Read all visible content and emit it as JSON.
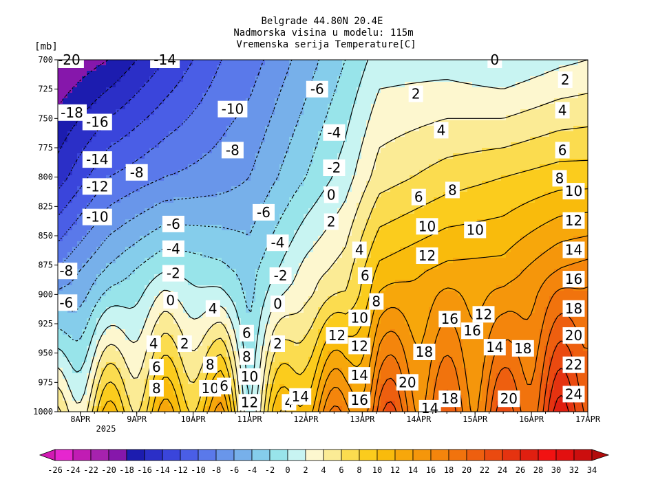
{
  "chart_data": {
    "type": "heatmap",
    "title": [
      "Belgrade  44.80N 20.4E",
      "Nadmorska visina u modelu: 115m",
      "Vremenska serija Temperature[C]"
    ],
    "y_unit_label": "[mb]",
    "y_ticks": [
      700,
      725,
      750,
      775,
      800,
      825,
      850,
      875,
      900,
      925,
      950,
      975,
      1000
    ],
    "ylim": [
      1000,
      700
    ],
    "x_ticks": [
      "8APR",
      "9APR",
      "10APR",
      "11APR",
      "12APR",
      "13APR",
      "14APR",
      "15APR",
      "16APR",
      "17APR"
    ],
    "x_year": "2025",
    "xlim_days": [
      7.6,
      17.0
    ],
    "contour_interval": 2,
    "colorbar_levels": [
      -26,
      -24,
      -22,
      -20,
      -18,
      -16,
      -14,
      -12,
      -10,
      -8,
      -6,
      -4,
      -2,
      0,
      2,
      4,
      6,
      8,
      10,
      12,
      14,
      16,
      18,
      20,
      22,
      24,
      26,
      28,
      30,
      32,
      34
    ],
    "colorbar_colors": [
      "#d31ab4",
      "#e626cf",
      "#c11cb4",
      "#a622ae",
      "#8617ab",
      "#1c1caf",
      "#2b2fc7",
      "#3a45db",
      "#4a5ee6",
      "#5a79ea",
      "#6996ea",
      "#77b0ea",
      "#85cdeb",
      "#98e4ea",
      "#c8f4f2",
      "#fdf7cf",
      "#fbeb95",
      "#fbdc4f",
      "#fbcc1d",
      "#f9bb0c",
      "#f7a70b",
      "#f5960b",
      "#f4850c",
      "#f1730d",
      "#ee5f0f",
      "#ea4a10",
      "#e53310",
      "#e01f10",
      "#f11212",
      "#e21010",
      "#cc0e0e",
      "#b30c0c"
    ],
    "temperature_profile_by_day": [
      {
        "day": 7.6,
        "levels": {
          "700": -20,
          "800": -15,
          "900": -6,
          "1000": 4
        }
      },
      {
        "day": 8.5,
        "levels": {
          "700": -18,
          "800": -10,
          "900": -2,
          "1000": 8
        }
      },
      {
        "day": 9.5,
        "levels": {
          "700": -14,
          "800": -8,
          "900": 2,
          "1000": 10
        }
      },
      {
        "day": 10.5,
        "levels": {
          "700": -10,
          "800": -7,
          "900": 0,
          "1000": 12
        }
      },
      {
        "day": 11.0,
        "levels": {
          "700": -9,
          "800": -6,
          "900": -2,
          "1000": 3
        }
      },
      {
        "day": 12.0,
        "levels": {
          "700": -5,
          "800": -2,
          "900": 4,
          "1000": 14
        }
      },
      {
        "day": 12.7,
        "levels": {
          "700": -2,
          "800": 1,
          "900": 6,
          "1000": 16
        }
      },
      {
        "day": 13.3,
        "levels": {
          "700": 1,
          "800": 5,
          "900": 12,
          "1000": 20
        }
      },
      {
        "day": 14.5,
        "levels": {
          "700": 1,
          "800": 7,
          "900": 14,
          "1000": 18
        }
      },
      {
        "day": 15.5,
        "levels": {
          "700": 0,
          "800": 8,
          "900": 14,
          "1000": 20
        }
      },
      {
        "day": 16.5,
        "levels": {
          "700": 1.5,
          "800": 9,
          "900": 18,
          "1000": 24
        }
      },
      {
        "day": 17.0,
        "levels": {
          "700": 2,
          "800": 9,
          "900": 19,
          "1000": 25
        }
      }
    ],
    "contour_labels": [
      {
        "text": "-20",
        "day": 7.8,
        "p": 700
      },
      {
        "text": "-14",
        "day": 9.5,
        "p": 700
      },
      {
        "text": "-18",
        "day": 7.85,
        "p": 745
      },
      {
        "text": "-16",
        "day": 8.3,
        "p": 753
      },
      {
        "text": "-14",
        "day": 8.3,
        "p": 785
      },
      {
        "text": "-12",
        "day": 8.3,
        "p": 808
      },
      {
        "text": "-10",
        "day": 8.3,
        "p": 834
      },
      {
        "text": "-8",
        "day": 9.0,
        "p": 796
      },
      {
        "text": "-8",
        "day": 7.75,
        "p": 880
      },
      {
        "text": "-6",
        "day": 7.75,
        "p": 907
      },
      {
        "text": "-10",
        "day": 10.7,
        "p": 742
      },
      {
        "text": "-8",
        "day": 10.7,
        "p": 777
      },
      {
        "text": "-6",
        "day": 12.2,
        "p": 725
      },
      {
        "text": "-4",
        "day": 12.5,
        "p": 762
      },
      {
        "text": "-2",
        "day": 12.5,
        "p": 792
      },
      {
        "text": "0",
        "day": 12.45,
        "p": 815
      },
      {
        "text": "2",
        "day": 12.45,
        "p": 838
      },
      {
        "text": "4",
        "day": 12.95,
        "p": 862
      },
      {
        "text": "-6",
        "day": 9.65,
        "p": 840
      },
      {
        "text": "-4",
        "day": 9.65,
        "p": 861
      },
      {
        "text": "-2",
        "day": 9.65,
        "p": 882
      },
      {
        "text": "0",
        "day": 9.6,
        "p": 905
      },
      {
        "text": "2",
        "day": 9.85,
        "p": 942
      },
      {
        "text": "4",
        "day": 10.35,
        "p": 912
      },
      {
        "text": "-6",
        "day": 11.25,
        "p": 830
      },
      {
        "text": "-4",
        "day": 11.5,
        "p": 856
      },
      {
        "text": "-2",
        "day": 11.55,
        "p": 884
      },
      {
        "text": "0",
        "day": 11.5,
        "p": 908
      },
      {
        "text": "2",
        "day": 11.5,
        "p": 942
      },
      {
        "text": "4",
        "day": 9.3,
        "p": 942
      },
      {
        "text": "6",
        "day": 9.35,
        "p": 962
      },
      {
        "text": "8",
        "day": 9.35,
        "p": 980
      },
      {
        "text": "8",
        "day": 10.3,
        "p": 960
      },
      {
        "text": "10",
        "day": 10.3,
        "p": 980
      },
      {
        "text": "6",
        "day": 10.55,
        "p": 978
      },
      {
        "text": "6",
        "day": 10.95,
        "p": 933
      },
      {
        "text": "8",
        "day": 10.95,
        "p": 953
      },
      {
        "text": "10",
        "day": 11.0,
        "p": 970
      },
      {
        "text": "12",
        "day": 11.0,
        "p": 992
      },
      {
        "text": "4",
        "day": 11.7,
        "p": 992
      },
      {
        "text": "14",
        "day": 11.9,
        "p": 987
      },
      {
        "text": "12",
        "day": 12.55,
        "p": 935
      },
      {
        "text": "10",
        "day": 12.95,
        "p": 920
      },
      {
        "text": "12",
        "day": 12.95,
        "p": 944
      },
      {
        "text": "14",
        "day": 12.95,
        "p": 969
      },
      {
        "text": "16",
        "day": 12.95,
        "p": 990
      },
      {
        "text": "6",
        "day": 13.05,
        "p": 884
      },
      {
        "text": "8",
        "day": 13.25,
        "p": 906
      },
      {
        "text": "2",
        "day": 13.95,
        "p": 729
      },
      {
        "text": "4",
        "day": 14.4,
        "p": 760
      },
      {
        "text": "6",
        "day": 14.0,
        "p": 817
      },
      {
        "text": "8",
        "day": 14.6,
        "p": 811
      },
      {
        "text": "10",
        "day": 14.15,
        "p": 842
      },
      {
        "text": "12",
        "day": 14.15,
        "p": 867
      },
      {
        "text": "10",
        "day": 15.0,
        "p": 845
      },
      {
        "text": "16",
        "day": 14.55,
        "p": 921
      },
      {
        "text": "18",
        "day": 14.1,
        "p": 949
      },
      {
        "text": "20",
        "day": 13.8,
        "p": 975
      },
      {
        "text": "14",
        "day": 14.2,
        "p": 997
      },
      {
        "text": "18",
        "day": 14.55,
        "p": 989
      },
      {
        "text": "12",
        "day": 15.15,
        "p": 917
      },
      {
        "text": "16",
        "day": 14.95,
        "p": 931
      },
      {
        "text": "14",
        "day": 15.35,
        "p": 945
      },
      {
        "text": "18",
        "day": 15.85,
        "p": 946
      },
      {
        "text": "20",
        "day": 15.6,
        "p": 989
      },
      {
        "text": "0",
        "day": 15.35,
        "p": 700
      },
      {
        "text": "2",
        "day": 16.6,
        "p": 717
      },
      {
        "text": "4",
        "day": 16.55,
        "p": 743
      },
      {
        "text": "6",
        "day": 16.55,
        "p": 777
      },
      {
        "text": "8",
        "day": 16.5,
        "p": 801
      },
      {
        "text": "10",
        "day": 16.75,
        "p": 812
      },
      {
        "text": "12",
        "day": 16.75,
        "p": 837
      },
      {
        "text": "14",
        "day": 16.75,
        "p": 862
      },
      {
        "text": "16",
        "day": 16.75,
        "p": 887
      },
      {
        "text": "18",
        "day": 16.75,
        "p": 912
      },
      {
        "text": "20",
        "day": 16.75,
        "p": 935
      },
      {
        "text": "22",
        "day": 16.75,
        "p": 960
      },
      {
        "text": "24",
        "day": 16.75,
        "p": 985
      }
    ]
  }
}
